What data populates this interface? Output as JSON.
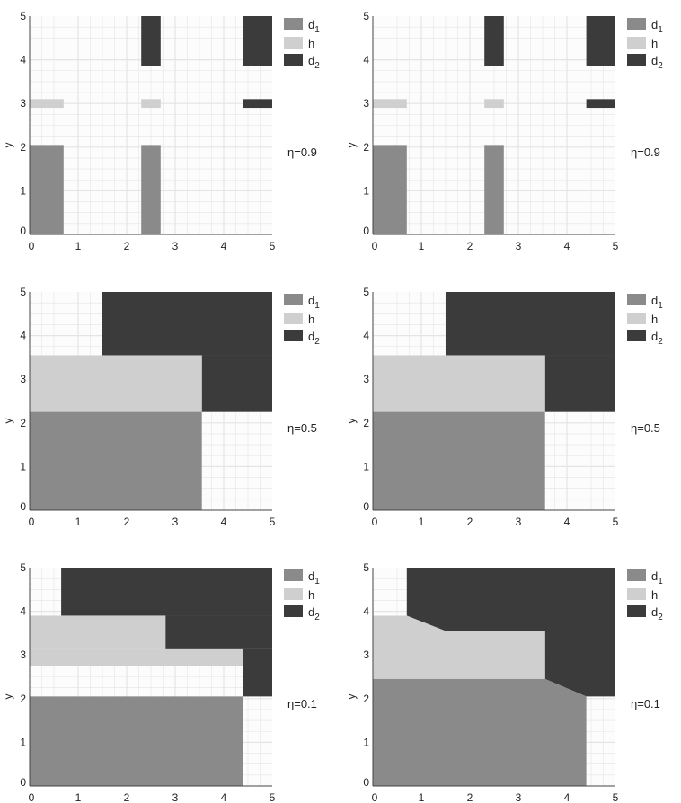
{
  "colors": {
    "d1": "#8a8a8a",
    "h": "#cfcfcf",
    "d2": "#3b3b3b",
    "grid": "#e4e4e4"
  },
  "legend": {
    "d1": "d",
    "d1_sub": "1",
    "h": "h",
    "d2": "d",
    "d2_sub": "2"
  },
  "chart_data": [
    {
      "type": "area",
      "panel": "eta09-left",
      "eta_label": "η=0.9",
      "ylabel": "y",
      "xlim": [
        0,
        5
      ],
      "ylim": [
        0,
        5
      ],
      "xticks": [
        "0",
        "1",
        "2",
        "3",
        "4",
        "5"
      ],
      "yticks": [
        "0",
        "1",
        "2",
        "3",
        "4",
        "5"
      ],
      "regions": [
        {
          "class": "d1",
          "rects": [
            [
              0,
              0,
              0.7,
              2.05
            ],
            [
              2.3,
              0,
              2.7,
              2.05
            ]
          ]
        },
        {
          "class": "h",
          "rects": [
            [
              0,
              2.9,
              0.7,
              3.1
            ],
            [
              2.3,
              2.9,
              2.7,
              3.1
            ]
          ]
        },
        {
          "class": "d2",
          "rects": [
            [
              2.3,
              3.85,
              2.7,
              5
            ],
            [
              4.4,
              3.85,
              5,
              5
            ],
            [
              4.4,
              2.9,
              5,
              3.1
            ]
          ]
        }
      ]
    },
    {
      "type": "area",
      "panel": "eta09-right",
      "eta_label": "η=0.9",
      "ylabel": "y",
      "xlim": [
        0,
        5
      ],
      "ylim": [
        0,
        5
      ],
      "xticks": [
        "0",
        "1",
        "2",
        "3",
        "4",
        "5"
      ],
      "yticks": [
        "0",
        "1",
        "2",
        "3",
        "4",
        "5"
      ],
      "regions": [
        {
          "class": "d1",
          "rects": [
            [
              0,
              0,
              0.7,
              2.05
            ],
            [
              2.3,
              0,
              2.7,
              2.05
            ]
          ]
        },
        {
          "class": "h",
          "rects": [
            [
              0,
              2.9,
              0.7,
              3.1
            ],
            [
              2.3,
              2.9,
              2.7,
              3.1
            ]
          ]
        },
        {
          "class": "d2",
          "rects": [
            [
              2.3,
              3.85,
              2.7,
              5
            ],
            [
              4.4,
              3.85,
              5,
              5
            ],
            [
              4.4,
              2.9,
              5,
              3.1
            ]
          ]
        }
      ]
    },
    {
      "type": "area",
      "panel": "eta05-left",
      "eta_label": "η=0.5",
      "ylabel": "y",
      "xlim": [
        0,
        5
      ],
      "ylim": [
        0,
        5
      ],
      "xticks": [
        "0",
        "1",
        "2",
        "3",
        "4",
        "5"
      ],
      "yticks": [
        "0",
        "1",
        "2",
        "3",
        "4",
        "5"
      ],
      "regions": [
        {
          "class": "d2",
          "rects": [
            [
              1.5,
              3.55,
              5,
              5
            ],
            [
              3.55,
              2.25,
              5,
              3.55
            ]
          ]
        },
        {
          "class": "h",
          "rects": [
            [
              0,
              2.25,
              3.55,
              3.55
            ]
          ]
        },
        {
          "class": "d1",
          "rects": [
            [
              0,
              0,
              3.55,
              2.25
            ]
          ]
        }
      ]
    },
    {
      "type": "area",
      "panel": "eta05-right",
      "eta_label": "η=0.5",
      "ylabel": "y",
      "xlim": [
        0,
        5
      ],
      "ylim": [
        0,
        5
      ],
      "xticks": [
        "0",
        "1",
        "2",
        "3",
        "4",
        "5"
      ],
      "yticks": [
        "0",
        "1",
        "2",
        "3",
        "4",
        "5"
      ],
      "regions": [
        {
          "class": "d2",
          "rects": [
            [
              1.5,
              3.55,
              5,
              5
            ],
            [
              3.55,
              2.25,
              5,
              3.55
            ]
          ]
        },
        {
          "class": "h",
          "rects": [
            [
              0,
              2.25,
              3.55,
              3.55
            ]
          ]
        },
        {
          "class": "d1",
          "rects": [
            [
              0,
              0,
              3.55,
              2.25
            ]
          ]
        }
      ]
    },
    {
      "type": "area",
      "panel": "eta01-left",
      "eta_label": "η=0.1",
      "ylabel": "y",
      "xlim": [
        0,
        5
      ],
      "ylim": [
        0,
        5
      ],
      "xticks": [
        "0",
        "1",
        "2",
        "3",
        "4",
        "5"
      ],
      "yticks": [
        "0",
        "1",
        "2",
        "3",
        "4",
        "5"
      ],
      "regions": [
        {
          "class": "d2",
          "rects": [
            [
              0.65,
              3.9,
              5,
              5
            ],
            [
              2.8,
              3.15,
              5,
              3.9
            ],
            [
              4.4,
              2.05,
              5,
              3.15
            ]
          ]
        },
        {
          "class": "h",
          "rects": [
            [
              0,
              3.15,
              2.8,
              3.9
            ],
            [
              0,
              2.75,
              4.4,
              3.15
            ]
          ]
        },
        {
          "class": "d1",
          "rects": [
            [
              0,
              0,
              4.4,
              2.05
            ]
          ]
        }
      ]
    },
    {
      "type": "area",
      "panel": "eta01-right",
      "eta_label": "η=0.1",
      "ylabel": "y",
      "xlim": [
        0,
        5
      ],
      "ylim": [
        0,
        5
      ],
      "xticks": [
        "0",
        "1",
        "2",
        "3",
        "4",
        "5"
      ],
      "yticks": [
        "0",
        "1",
        "2",
        "3",
        "4",
        "5"
      ],
      "regions": [
        {
          "class": "d2",
          "polys": [
            [
              [
                0.7,
                5
              ],
              [
                5,
                5
              ],
              [
                5,
                2.05
              ],
              [
                4.4,
                2.05
              ],
              [
                3.55,
                2.45
              ],
              [
                3.55,
                3.55
              ],
              [
                1.5,
                3.55
              ],
              [
                0.7,
                3.9
              ]
            ]
          ]
        },
        {
          "class": "h",
          "polys": [
            [
              [
                0,
                3.9
              ],
              [
                0.7,
                3.9
              ],
              [
                1.5,
                3.55
              ],
              [
                3.55,
                3.55
              ],
              [
                3.55,
                2.45
              ],
              [
                0,
                2.45
              ]
            ]
          ]
        },
        {
          "class": "d1",
          "polys": [
            [
              [
                0,
                0
              ],
              [
                4.4,
                0
              ],
              [
                4.4,
                2.05
              ],
              [
                3.55,
                2.45
              ],
              [
                0,
                2.45
              ]
            ]
          ]
        }
      ]
    }
  ]
}
